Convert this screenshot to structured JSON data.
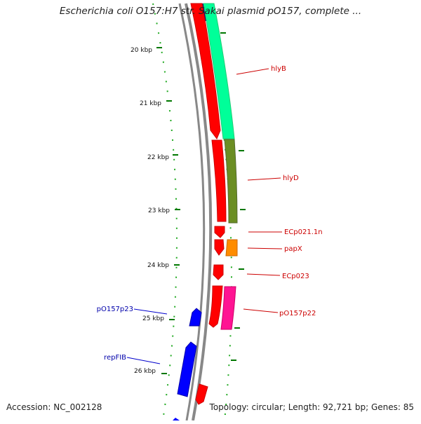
{
  "title": "Escherichia coli O157:H7 str. Sakai plasmid pO157, complete ...",
  "footer": {
    "accession": "Accession: NC_002128",
    "summary": "Topology: circular; Length: 92,721 bp; Genes: 85"
  },
  "ticks": [
    "20 kbp",
    "21 kbp",
    "22 kbp",
    "23 kbp",
    "24 kbp",
    "25 kbp",
    "26 kbp"
  ],
  "gene_labels": {
    "hlyB": "hlyB",
    "hlyD": "hlyD",
    "ECp021_1n": "ECp021.1n",
    "papX": "papX",
    "ECp023": "ECp023",
    "pO157p22": "pO157p22",
    "pO157p23": "pO157p23",
    "repFIB": "repFIB"
  },
  "colors": {
    "backbone": "#888888",
    "tick": "#007700",
    "forward_gene": "#ff0000",
    "reverse_gene": "#0000ff",
    "hlyB_track": "#00ff99",
    "hlyD_track": "#6b8e23",
    "papX_track": "#ff8c00",
    "pO157p22_track": "#ff1493",
    "label_forward": "#cc0000",
    "label_reverse": "#0000aa"
  }
}
